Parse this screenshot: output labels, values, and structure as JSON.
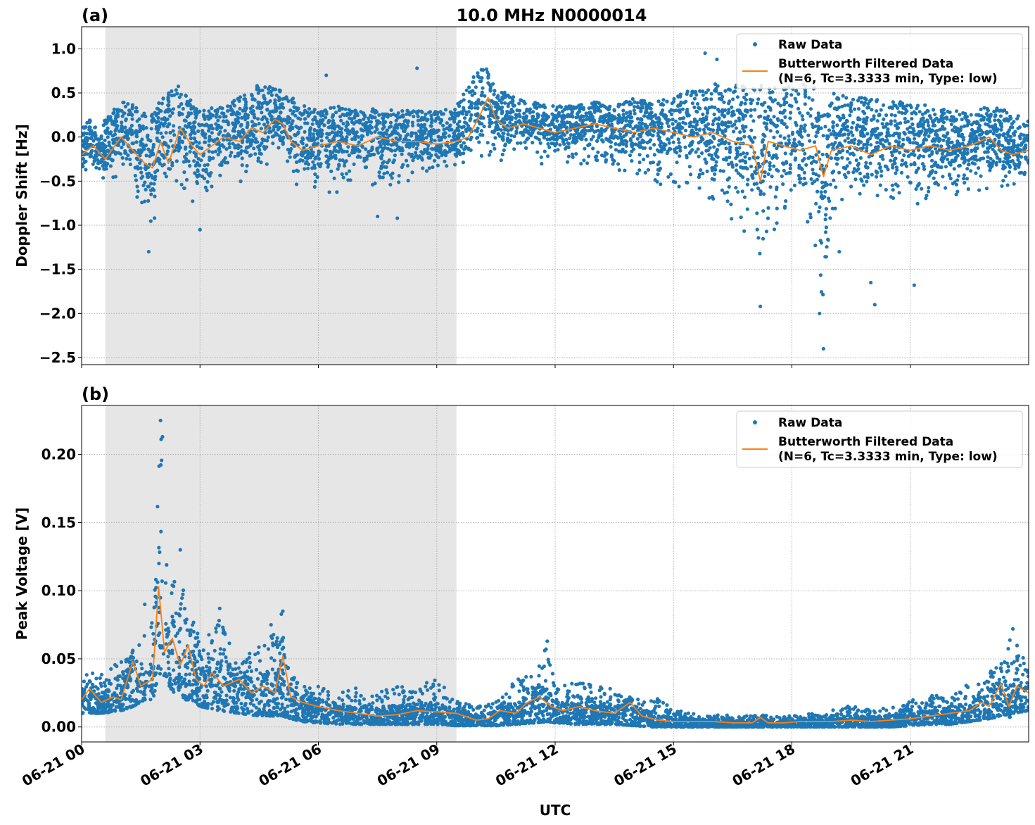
{
  "figure": {
    "title": "10.0 MHz N0000014",
    "xlabel": "UTC",
    "x_tick_labels": [
      "06-21 00",
      "06-21 03",
      "06-21 06",
      "06-21 09",
      "06-21 12",
      "06-21 15",
      "06-21 18",
      "06-21 21"
    ],
    "colors": {
      "raw": "#1f77b4",
      "filtered": "#ff7f0e",
      "shade": "#e6e6e6",
      "grid": "#b0b0b0"
    }
  },
  "chart_data": [
    {
      "type": "scatter",
      "panel_label": "(a)",
      "ylabel": "Doppler Shift [Hz]",
      "x_unit": "hours UTC on 06-21",
      "xlim": [
        0,
        24
      ],
      "ylim": [
        -2.58,
        1.25
      ],
      "yticks": [
        1.0,
        0.5,
        0.0,
        -0.5,
        -1.0,
        -1.5,
        -2.0,
        -2.5
      ],
      "ytick_labels": [
        "1.0",
        "0.5",
        "0.0",
        "−0.5",
        "−1.0",
        "−1.5",
        "−2.0",
        "−2.5"
      ],
      "shaded_interval": [
        0.6,
        9.5
      ],
      "legend": {
        "position": "upper right",
        "entries": [
          "Raw Data",
          "Butterworth Filtered Data",
          "(N=6, Tc=3.3333 min, Type: low)"
        ]
      },
      "series": [
        {
          "name": "Raw Data",
          "style": "points",
          "x": [
            0.0,
            0.5,
            1.0,
            1.5,
            1.7,
            2.0,
            2.5,
            3.0,
            3.5,
            4.0,
            4.5,
            5.0,
            5.5,
            6.0,
            6.5,
            7.0,
            7.5,
            8.0,
            8.5,
            9.0,
            9.5,
            10.0,
            10.3,
            10.5,
            11.0,
            11.5,
            12.0,
            12.5,
            13.0,
            13.5,
            14.0,
            14.5,
            15.0,
            15.5,
            16.0,
            16.5,
            17.0,
            17.2,
            17.5,
            18.0,
            18.5,
            18.8,
            19.0,
            19.5,
            20.0,
            20.5,
            21.0,
            21.5,
            22.0,
            22.5,
            23.0,
            23.5,
            24.0
          ],
          "upper": [
            0.25,
            0.15,
            0.4,
            0.35,
            0.2,
            0.45,
            0.6,
            0.3,
            0.35,
            0.45,
            0.6,
            0.55,
            0.4,
            0.3,
            0.35,
            0.3,
            0.35,
            0.3,
            0.3,
            0.3,
            0.35,
            0.75,
            0.8,
            0.55,
            0.45,
            0.4,
            0.35,
            0.35,
            0.4,
            0.35,
            0.45,
            0.4,
            0.45,
            0.55,
            0.6,
            0.6,
            0.6,
            0.6,
            0.55,
            0.6,
            0.6,
            0.55,
            0.5,
            0.45,
            0.45,
            0.4,
            0.4,
            0.35,
            0.3,
            0.3,
            0.35,
            0.3,
            0.2
          ],
          "lower": [
            -0.45,
            -0.5,
            -0.5,
            -0.8,
            -1.3,
            -0.6,
            -0.55,
            -1.05,
            -0.55,
            -0.6,
            -0.45,
            -0.4,
            -0.6,
            -0.7,
            -0.7,
            -0.65,
            -0.6,
            -0.6,
            -0.55,
            -0.5,
            -0.35,
            -0.3,
            -0.35,
            -0.5,
            -0.25,
            -0.3,
            -0.4,
            -0.35,
            -0.35,
            -0.45,
            -0.45,
            -0.55,
            -0.6,
            -0.7,
            -0.8,
            -1.2,
            -1.4,
            -1.92,
            -1.1,
            -1.0,
            -1.2,
            -2.4,
            -1.1,
            -0.9,
            -0.8,
            -0.9,
            -0.9,
            -0.8,
            -0.75,
            -0.7,
            -0.65,
            -0.6,
            -0.6
          ],
          "outliers": [
            [
              8.5,
              0.78
            ],
            [
              6.2,
              0.7
            ],
            [
              15.8,
              0.95
            ],
            [
              16.1,
              0.88
            ],
            [
              17.2,
              -1.92
            ],
            [
              18.7,
              -2.0
            ],
            [
              18.8,
              -2.4
            ],
            [
              20.0,
              -1.65
            ],
            [
              20.1,
              -1.9
            ],
            [
              21.1,
              -1.68
            ],
            [
              19.2,
              -1.3
            ],
            [
              1.7,
              -1.3
            ],
            [
              3.0,
              -1.05
            ],
            [
              8.0,
              -0.92
            ],
            [
              7.5,
              -0.9
            ]
          ]
        },
        {
          "name": "Butterworth Filtered Data",
          "style": "line",
          "x": [
            0.0,
            0.3,
            0.6,
            1.0,
            1.3,
            1.6,
            1.8,
            2.0,
            2.2,
            2.5,
            2.8,
            3.0,
            3.3,
            3.6,
            4.0,
            4.3,
            4.6,
            4.9,
            5.1,
            5.3,
            5.6,
            6.0,
            6.5,
            7.0,
            7.5,
            8.0,
            8.5,
            9.0,
            9.5,
            9.8,
            10.1,
            10.3,
            10.5,
            10.8,
            11.2,
            11.6,
            12.0,
            12.5,
            13.0,
            13.5,
            14.0,
            14.5,
            15.0,
            15.5,
            16.0,
            16.5,
            17.0,
            17.2,
            17.4,
            17.8,
            18.2,
            18.6,
            18.8,
            19.0,
            19.5,
            20.0,
            20.5,
            21.0,
            21.5,
            22.0,
            22.5,
            23.0,
            23.3,
            23.6,
            24.0
          ],
          "y": [
            -0.2,
            -0.1,
            -0.25,
            0.0,
            -0.15,
            -0.3,
            -0.35,
            -0.05,
            -0.3,
            0.1,
            -0.1,
            -0.2,
            -0.1,
            0.0,
            -0.05,
            0.1,
            0.05,
            0.2,
            0.15,
            -0.05,
            -0.15,
            -0.1,
            -0.05,
            -0.1,
            0.0,
            -0.05,
            -0.05,
            -0.08,
            -0.05,
            0.0,
            0.25,
            0.45,
            0.2,
            0.1,
            0.15,
            0.1,
            0.05,
            0.1,
            0.15,
            0.1,
            0.05,
            0.1,
            0.05,
            0.0,
            0.05,
            -0.05,
            -0.1,
            -0.5,
            -0.05,
            -0.1,
            -0.15,
            -0.1,
            -0.45,
            -0.15,
            -0.1,
            -0.2,
            -0.1,
            -0.15,
            -0.1,
            -0.15,
            -0.1,
            0.0,
            -0.15,
            -0.2,
            -0.15
          ]
        }
      ]
    },
    {
      "type": "scatter",
      "panel_label": "(b)",
      "ylabel": "Peak Voltage [V]",
      "x_unit": "hours UTC on 06-21",
      "xlim": [
        0,
        24
      ],
      "ylim": [
        -0.011,
        0.236
      ],
      "yticks": [
        0.0,
        0.05,
        0.1,
        0.15,
        0.2
      ],
      "ytick_labels": [
        "0.00",
        "0.05",
        "0.10",
        "0.15",
        "0.20"
      ],
      "shaded_interval": [
        0.6,
        9.5
      ],
      "legend": {
        "position": "upper right",
        "entries": [
          "Raw Data",
          "Butterworth Filtered Data",
          "(N=6, Tc=3.3333 min, Type: low)"
        ]
      },
      "series": [
        {
          "name": "Raw Data",
          "style": "points",
          "x": [
            0.0,
            0.5,
            1.0,
            1.3,
            1.6,
            1.8,
            2.0,
            2.2,
            2.5,
            2.8,
            3.0,
            3.5,
            4.0,
            4.5,
            4.8,
            5.1,
            5.3,
            5.6,
            6.0,
            6.5,
            7.0,
            7.5,
            8.0,
            8.5,
            9.0,
            9.5,
            10.0,
            10.5,
            11.0,
            11.5,
            11.8,
            12.0,
            12.5,
            13.0,
            13.5,
            14.0,
            14.5,
            15.0,
            15.5,
            16.0,
            16.5,
            17.0,
            17.5,
            18.0,
            18.5,
            19.0,
            19.5,
            20.0,
            20.5,
            21.0,
            21.5,
            22.0,
            22.5,
            23.0,
            23.3,
            23.6,
            24.0
          ],
          "upper": [
            0.04,
            0.04,
            0.05,
            0.06,
            0.07,
            0.08,
            0.225,
            0.1,
            0.12,
            0.09,
            0.06,
            0.08,
            0.05,
            0.06,
            0.07,
            0.085,
            0.04,
            0.03,
            0.03,
            0.025,
            0.03,
            0.025,
            0.03,
            0.03,
            0.035,
            0.02,
            0.015,
            0.02,
            0.035,
            0.04,
            0.062,
            0.03,
            0.035,
            0.03,
            0.03,
            0.02,
            0.025,
            0.015,
            0.01,
            0.01,
            0.008,
            0.01,
            0.008,
            0.008,
            0.01,
            0.012,
            0.018,
            0.012,
            0.015,
            0.02,
            0.025,
            0.02,
            0.035,
            0.04,
            0.052,
            0.072,
            0.04
          ],
          "lower": [
            0.01,
            0.01,
            0.012,
            0.015,
            0.02,
            0.02,
            0.04,
            0.03,
            0.02,
            0.02,
            0.015,
            0.012,
            0.01,
            0.008,
            0.008,
            0.008,
            0.006,
            0.004,
            0.003,
            0.002,
            0.002,
            0.002,
            0.002,
            0.002,
            0.002,
            0.001,
            0.001,
            0.001,
            0.002,
            0.003,
            0.004,
            0.003,
            0.002,
            0.002,
            0.002,
            0.001,
            0.0,
            0.0,
            0.0,
            0.0,
            0.0,
            0.0,
            0.0,
            0.0,
            0.0,
            0.0,
            0.0,
            0.0,
            0.0,
            0.001,
            0.002,
            0.002,
            0.004,
            0.006,
            0.008,
            0.01,
            0.012
          ],
          "outliers": [
            [
              2.0,
              0.225
            ],
            [
              2.05,
              0.213
            ],
            [
              2.5,
              0.13
            ],
            [
              3.5,
              0.087
            ],
            [
              4.8,
              0.075
            ],
            [
              5.1,
              0.085
            ],
            [
              11.8,
              0.063
            ],
            [
              1.6,
              0.09
            ],
            [
              23.6,
              0.072
            ]
          ]
        },
        {
          "name": "Butterworth Filtered Data",
          "style": "line",
          "x": [
            0.0,
            0.2,
            0.5,
            0.8,
            1.0,
            1.3,
            1.5,
            1.8,
            1.95,
            2.1,
            2.3,
            2.5,
            2.7,
            2.9,
            3.1,
            3.3,
            3.6,
            4.0,
            4.3,
            4.6,
            4.9,
            5.1,
            5.3,
            5.6,
            6.0,
            6.5,
            7.0,
            7.5,
            8.0,
            8.5,
            9.0,
            9.5,
            10.0,
            10.3,
            10.6,
            11.0,
            11.3,
            11.6,
            11.9,
            12.2,
            12.6,
            13.0,
            13.5,
            13.9,
            14.2,
            14.6,
            15.0,
            15.5,
            16.0,
            16.5,
            17.0,
            17.2,
            17.4,
            17.8,
            18.2,
            18.6,
            19.0,
            19.5,
            20.0,
            20.5,
            21.0,
            21.5,
            22.0,
            22.5,
            22.8,
            23.0,
            23.3,
            23.5,
            23.7,
            24.0
          ],
          "y": [
            0.02,
            0.028,
            0.018,
            0.022,
            0.02,
            0.048,
            0.03,
            0.035,
            0.103,
            0.055,
            0.065,
            0.045,
            0.06,
            0.035,
            0.03,
            0.04,
            0.03,
            0.035,
            0.025,
            0.03,
            0.025,
            0.052,
            0.022,
            0.018,
            0.015,
            0.012,
            0.01,
            0.008,
            0.009,
            0.012,
            0.011,
            0.01,
            0.005,
            0.006,
            0.012,
            0.01,
            0.018,
            0.022,
            0.015,
            0.012,
            0.015,
            0.012,
            0.01,
            0.018,
            0.008,
            0.005,
            0.004,
            0.004,
            0.004,
            0.003,
            0.003,
            0.007,
            0.003,
            0.003,
            0.004,
            0.004,
            0.004,
            0.005,
            0.004,
            0.005,
            0.006,
            0.008,
            0.01,
            0.012,
            0.018,
            0.015,
            0.032,
            0.015,
            0.03,
            0.025
          ]
        }
      ]
    }
  ]
}
